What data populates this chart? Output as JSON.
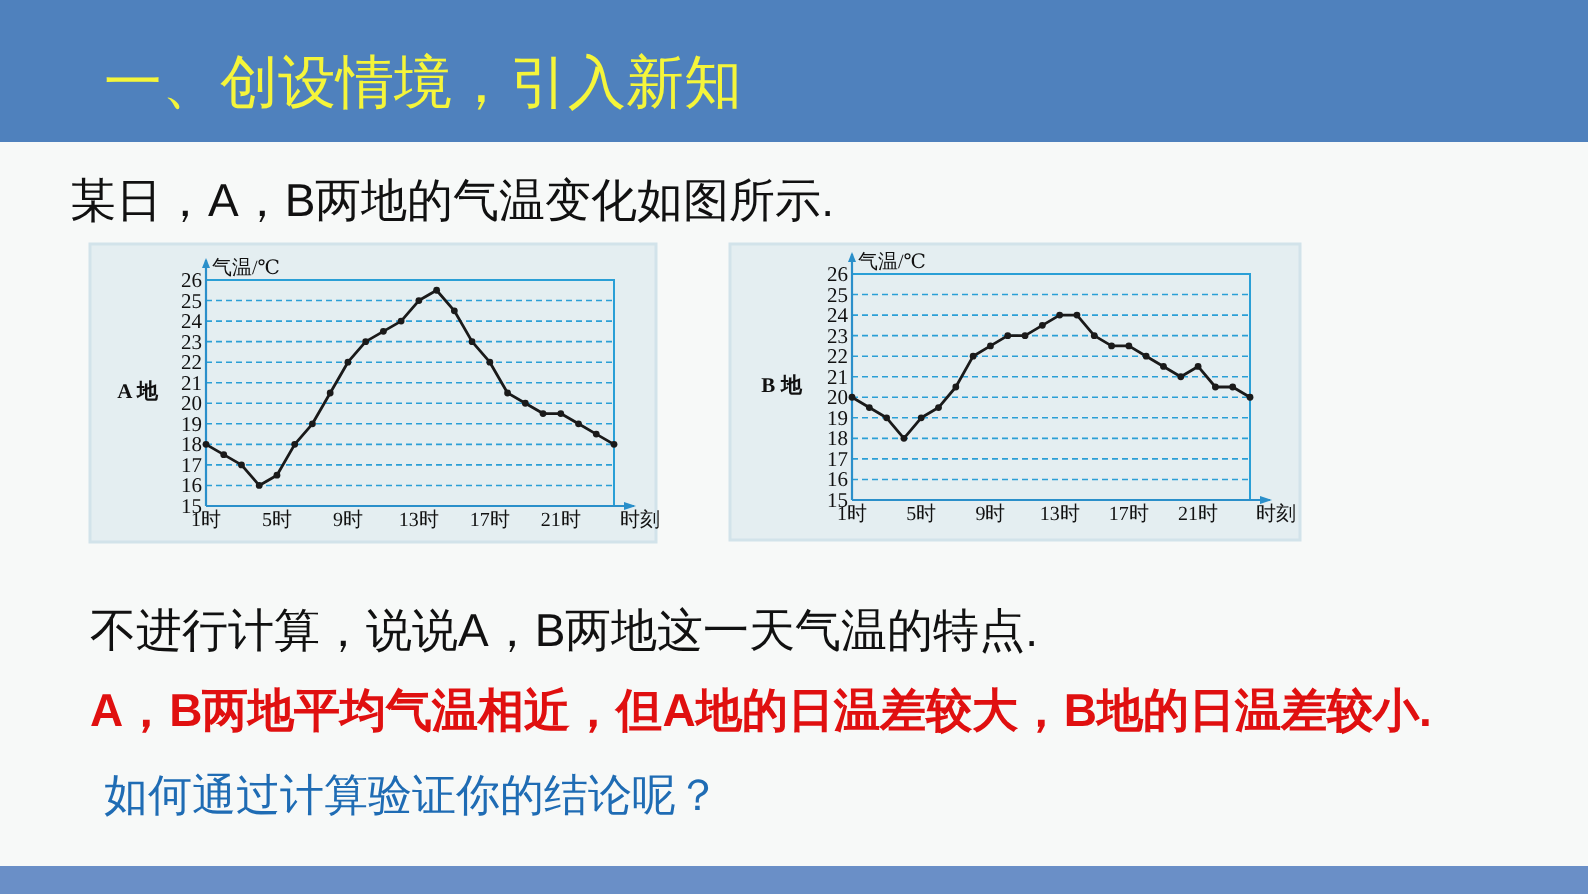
{
  "chart_data": [
    {
      "type": "line",
      "title": "A 地",
      "xlabel": "时刻",
      "ylabel": "气温/℃",
      "annotations": [
        "一、创设情境，引入新知",
        "某日，A，B两地的气温变化如图所示."
      ],
      "x": [
        1,
        2,
        3,
        4,
        5,
        6,
        7,
        8,
        9,
        10,
        11,
        12,
        13,
        14,
        15,
        16,
        17,
        18,
        19,
        20,
        21,
        22,
        23,
        24
      ],
      "series": [
        {
          "color": "#1a1a1a",
          "values": [
            18,
            17.5,
            17,
            16,
            16.5,
            18,
            19,
            20.5,
            22,
            23,
            23.5,
            24,
            25,
            25.5,
            24.5,
            23,
            22,
            20.5,
            20,
            19.5,
            19.5,
            19,
            18.5,
            18
          ]
        }
      ],
      "xlim": [
        1,
        24
      ],
      "xticks": [
        {
          "value": 1,
          "label": "1时"
        },
        {
          "value": 5,
          "label": "5时"
        },
        {
          "value": 9,
          "label": "9时"
        },
        {
          "value": 13,
          "label": "13时"
        },
        {
          "value": 17,
          "label": "17时"
        },
        {
          "value": 21,
          "label": "21时"
        }
      ],
      "ylim": [
        15,
        26
      ],
      "yticks": [
        15,
        16,
        17,
        18,
        19,
        20,
        21,
        22,
        23,
        24,
        25,
        26
      ],
      "grid": "y",
      "marker": "circle"
    },
    {
      "type": "line",
      "title": "B 地",
      "xlabel": "时刻",
      "ylabel": "气温/℃",
      "annotations": [
        "不进行计算，说说A，B两地这一天气温的特点.",
        "A，B两地平均气温相近，但A地的日温差较大，B地的日温差较小.",
        "如何通过计算验证你的结论呢？"
      ],
      "x": [
        1,
        2,
        3,
        4,
        5,
        6,
        7,
        8,
        9,
        10,
        11,
        12,
        13,
        14,
        15,
        16,
        17,
        18,
        19,
        20,
        21,
        22,
        23,
        24
      ],
      "series": [
        {
          "color": "#1a1a1a",
          "values": [
            20,
            19.5,
            19,
            18,
            19,
            19.5,
            20.5,
            22,
            22.5,
            23,
            23,
            23.5,
            24,
            24,
            23,
            22.5,
            22.5,
            22,
            21.5,
            21,
            21.5,
            20.5,
            20.5,
            20
          ]
        }
      ],
      "xlim": [
        1,
        24
      ],
      "xticks": [
        {
          "value": 1,
          "label": "1时"
        },
        {
          "value": 5,
          "label": "5时"
        },
        {
          "value": 9,
          "label": "9时"
        },
        {
          "value": 13,
          "label": "13时"
        },
        {
          "value": 17,
          "label": "17时"
        },
        {
          "value": 21,
          "label": "21时"
        }
      ],
      "ylim": [
        15,
        26
      ],
      "yticks": [
        15,
        16,
        17,
        18,
        19,
        20,
        21,
        22,
        23,
        24,
        25,
        26
      ],
      "grid": "y",
      "marker": "circle"
    }
  ]
}
